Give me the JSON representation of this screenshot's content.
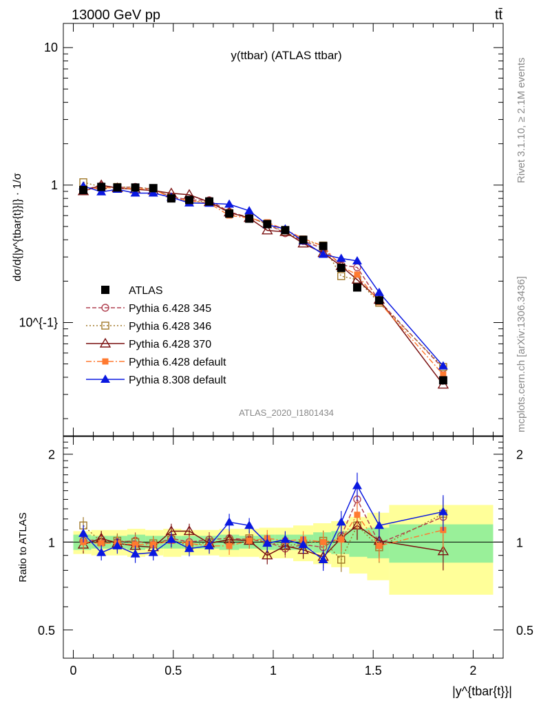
{
  "header": {
    "left": "13000 GeV pp",
    "right": "tt̄"
  },
  "side": {
    "top": "Rivet 3.1.10, ≥ 2.1M events",
    "bottom": "mcplots.cern.ch [arXiv:1306.3436]"
  },
  "colors": {
    "atlas": "#000000",
    "p345": "#b04050",
    "p346": "#a07828",
    "p370": "#7a1010",
    "pdefault": "#ff7a30",
    "p8": "#0a18e0",
    "band_inner": "#99f099",
    "band_outer": "#ffff99"
  },
  "chart_data": {
    "type": "line",
    "title": "y(ttbar) (ATLAS ttbar)",
    "analysis": "ATLAS_2020_I1801434",
    "ylabel_top": "dσ/d{|y^{tbar{t}}|} · 1/σ",
    "ylabel_ratio": "Ratio to ATLAS",
    "xlabel": "|y^{tbar{t}}|",
    "y_log": true,
    "ylim_main": [
      0.015,
      15
    ],
    "ylim_ratio": [
      0.4,
      2.3
    ],
    "xlim": [
      -0.05,
      2.15
    ],
    "y_main_ticks": [
      "10^{-1}",
      "1",
      "10"
    ],
    "ratio_ticks": [
      "0.5",
      "1",
      "2"
    ],
    "x_ticks": [
      "0",
      "0.5",
      "1",
      "1.5",
      "2"
    ],
    "bins": [
      0.05,
      0.14,
      0.22,
      0.31,
      0.4,
      0.49,
      0.58,
      0.68,
      0.78,
      0.88,
      0.97,
      1.06,
      1.15,
      1.25,
      1.34,
      1.42,
      1.53,
      1.85
    ],
    "bin_edges": [
      0.0,
      0.09,
      0.18,
      0.27,
      0.36,
      0.45,
      0.54,
      0.63,
      0.73,
      0.83,
      0.93,
      1.01,
      1.1,
      1.2,
      1.29,
      1.38,
      1.47,
      1.58,
      2.1
    ],
    "band_inner": [
      0.06,
      0.05,
      0.05,
      0.06,
      0.05,
      0.05,
      0.05,
      0.05,
      0.06,
      0.05,
      0.06,
      0.06,
      0.06,
      0.08,
      0.09,
      0.11,
      0.12,
      0.15
    ],
    "band_outer": [
      0.09,
      0.1,
      0.1,
      0.11,
      0.1,
      0.11,
      0.1,
      0.1,
      0.11,
      0.11,
      0.12,
      0.12,
      0.14,
      0.16,
      0.18,
      0.22,
      0.26,
      0.34
    ],
    "atlas_values": [
      0.92,
      0.97,
      0.96,
      0.96,
      0.95,
      0.8,
      0.78,
      0.76,
      0.62,
      0.57,
      0.52,
      0.47,
      0.4,
      0.36,
      0.25,
      0.18,
      0.145,
      0.038
    ],
    "series": [
      {
        "name": "ATLAS",
        "key": "atlas",
        "marker": "square-filled",
        "dash": "none",
        "ratio": [
          1,
          1,
          1,
          1,
          1,
          1,
          1,
          1,
          1,
          1,
          1,
          1,
          1,
          1,
          1,
          1,
          1,
          1
        ]
      },
      {
        "name": "Pythia 6.428 345",
        "key": "p345",
        "marker": "circle-open",
        "dash": "6,3",
        "ratio": [
          1.01,
          1.02,
          1.0,
          1.01,
          0.98,
          1.03,
          1.0,
          1.02,
          1.03,
          1.02,
          1.0,
          0.95,
          0.98,
          0.96,
          1.05,
          1.4,
          0.99,
          1.22
        ]
      },
      {
        "name": "Pythia 6.428 346",
        "key": "p346",
        "marker": "square-open",
        "dash": "2,3",
        "ratio": [
          1.14,
          1.0,
          1.01,
          1.0,
          0.99,
          1.02,
          0.97,
          1.0,
          1.01,
          1.03,
          1.0,
          0.97,
          0.99,
          1.01,
          0.87,
          1.14,
          0.96,
          1.25
        ]
      },
      {
        "name": "Pythia 6.428 370",
        "key": "p370",
        "marker": "triangle-open",
        "dash": "none",
        "ratio": [
          0.98,
          1.03,
          0.99,
          0.97,
          0.96,
          1.09,
          1.09,
          0.99,
          1.02,
          1.01,
          0.9,
          0.97,
          0.94,
          0.89,
          1.03,
          1.14,
          1.01,
          0.93
        ]
      },
      {
        "name": "Pythia 6.428 default",
        "key": "pdefault",
        "marker": "square-filled-small",
        "dash": "8,3,2,3",
        "ratio": [
          1.0,
          0.99,
          0.99,
          0.98,
          0.98,
          1.01,
          0.99,
          0.97,
          0.97,
          1.01,
          1.03,
          1.01,
          1.02,
          1.0,
          1.02,
          1.24,
          0.97,
          1.1
        ]
      },
      {
        "name": "Pythia 8.308 default",
        "key": "p8",
        "marker": "triangle-filled",
        "dash": "none",
        "ratio": [
          1.07,
          0.92,
          0.97,
          0.91,
          0.92,
          1.02,
          0.95,
          0.97,
          1.17,
          1.14,
          0.99,
          1.02,
          0.98,
          0.87,
          1.17,
          1.56,
          1.14,
          1.27
        ]
      }
    ]
  }
}
